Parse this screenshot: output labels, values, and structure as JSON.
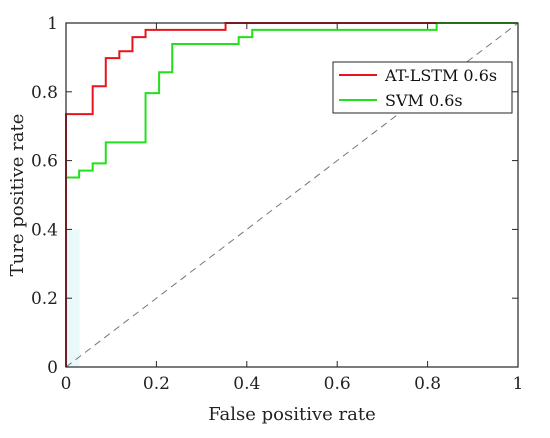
{
  "chart_data": {
    "type": "line",
    "xlabel": "False positive rate",
    "ylabel": "Ture positive rate",
    "xlim": [
      0,
      1
    ],
    "ylim": [
      0,
      1
    ],
    "x_ticks": [
      0,
      0.2,
      0.4,
      0.6,
      0.8,
      1
    ],
    "y_ticks": [
      0,
      0.2,
      0.4,
      0.6,
      0.8,
      1
    ],
    "x_tick_labels": [
      "0",
      "0.2",
      "0.4",
      "0.6",
      "0.8",
      "1"
    ],
    "y_tick_labels": [
      "0",
      "0.2",
      "0.4",
      "0.6",
      "0.8",
      "1"
    ],
    "grid": false,
    "legend_position": "upper-right",
    "series": [
      {
        "name": "AT-LSTM 0.6s",
        "color": "#e8141c",
        "style": "solid",
        "points": [
          [
            0,
            0
          ],
          [
            0,
            0.735
          ],
          [
            0.059,
            0.735
          ],
          [
            0.059,
            0.816
          ],
          [
            0.088,
            0.816
          ],
          [
            0.088,
            0.898
          ],
          [
            0.118,
            0.898
          ],
          [
            0.118,
            0.918
          ],
          [
            0.147,
            0.918
          ],
          [
            0.147,
            0.959
          ],
          [
            0.176,
            0.959
          ],
          [
            0.176,
            0.98
          ],
          [
            0.353,
            0.98
          ],
          [
            0.353,
            1
          ],
          [
            0.82,
            1
          ]
        ]
      },
      {
        "name": "SVM 0.6s",
        "color": "#22e01a",
        "style": "solid",
        "points": [
          [
            0,
            0
          ],
          [
            0,
            0.551
          ],
          [
            0.029,
            0.551
          ],
          [
            0.029,
            0.571
          ],
          [
            0.059,
            0.571
          ],
          [
            0.059,
            0.592
          ],
          [
            0.088,
            0.592
          ],
          [
            0.088,
            0.653
          ],
          [
            0.176,
            0.653
          ],
          [
            0.176,
            0.796
          ],
          [
            0.206,
            0.796
          ],
          [
            0.206,
            0.857
          ],
          [
            0.235,
            0.857
          ],
          [
            0.235,
            0.939
          ],
          [
            0.382,
            0.939
          ],
          [
            0.382,
            0.959
          ],
          [
            0.412,
            0.959
          ],
          [
            0.412,
            0.98
          ],
          [
            0.82,
            0.98
          ],
          [
            0.82,
            1
          ],
          [
            1,
            1
          ]
        ]
      },
      {
        "name": "",
        "color": "#777777",
        "style": "dashed",
        "points": [
          [
            0,
            0
          ],
          [
            1,
            1
          ]
        ]
      }
    ],
    "shaded_region": {
      "x": [
        0,
        0.03
      ],
      "y": [
        0,
        0.4
      ],
      "color": "#e9f8f8"
    }
  }
}
